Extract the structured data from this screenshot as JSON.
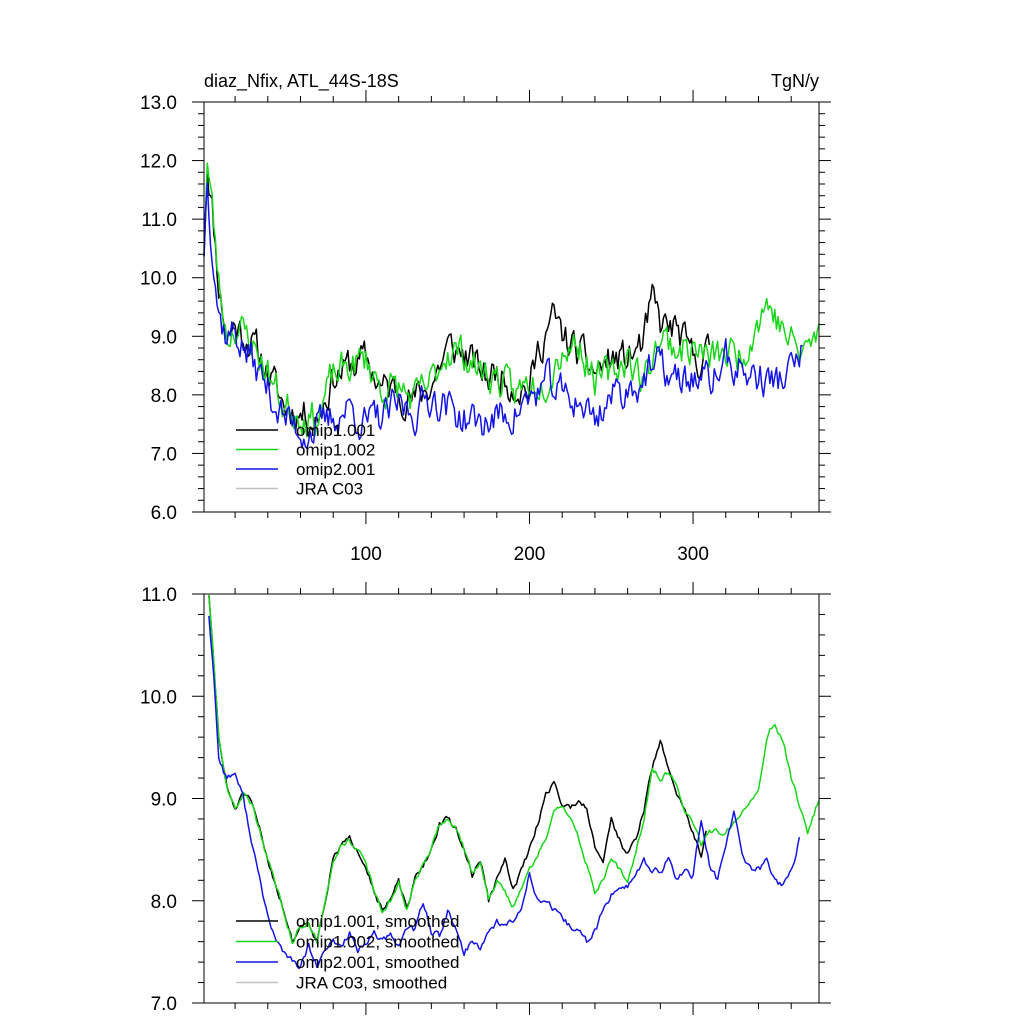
{
  "chart_data": [
    {
      "type": "line",
      "title": "diaz_Nfix, ATL_44S-18S",
      "units": "TgN/y",
      "xlim": [
        1,
        377
      ],
      "ylim": [
        6.0,
        13.0
      ],
      "x_ticks": [
        100,
        200,
        300
      ],
      "y_ticks": [
        6.0,
        7.0,
        8.0,
        9.0,
        10.0,
        11.0,
        12.0,
        13.0
      ],
      "y_tick_labels": [
        "6.0",
        "7.0",
        "8.0",
        "9.0",
        "10.0",
        "11.0",
        "12.0",
        "13.0"
      ],
      "legend": {
        "placement": "bottom-left"
      },
      "series": [
        {
          "name": "omip1.001",
          "color": "#000000",
          "x_start": 1,
          "x_end": 310,
          "anchors_x": [
            1,
            3,
            6,
            10,
            15,
            20,
            30,
            40,
            50,
            60,
            70,
            80,
            90,
            100,
            110,
            120,
            130,
            140,
            150,
            160,
            170,
            175,
            180,
            190,
            200,
            205,
            210,
            215,
            220,
            230,
            240,
            250,
            260,
            270,
            275,
            280,
            290,
            300,
            310
          ],
          "anchors_y": [
            10.5,
            12.0,
            11.2,
            9.9,
            9.0,
            9.2,
            8.9,
            8.4,
            7.8,
            7.7,
            7.6,
            8.3,
            8.5,
            8.6,
            8.1,
            8.1,
            7.9,
            8.2,
            8.8,
            8.7,
            8.4,
            8.3,
            8.4,
            8.2,
            8.1,
            8.7,
            9.1,
            9.3,
            9.0,
            8.7,
            8.4,
            8.6,
            8.6,
            8.9,
            9.6,
            9.2,
            9.1,
            8.6,
            8.7
          ],
          "noise": 0.26,
          "seed": 11
        },
        {
          "name": "omip1.002",
          "color": "#19d619",
          "x_start": 1,
          "x_end": 377,
          "anchors_x": [
            1,
            3,
            6,
            10,
            15,
            20,
            30,
            40,
            50,
            60,
            70,
            80,
            90,
            100,
            110,
            120,
            130,
            140,
            150,
            160,
            170,
            180,
            190,
            200,
            210,
            220,
            230,
            240,
            250,
            260,
            270,
            275,
            280,
            290,
            300,
            310,
            320,
            330,
            338,
            345,
            355,
            365,
            377
          ],
          "anchors_y": [
            10.6,
            12.0,
            11.2,
            9.9,
            9.0,
            9.2,
            8.9,
            8.4,
            7.8,
            7.7,
            7.6,
            8.3,
            8.5,
            8.6,
            8.1,
            8.1,
            7.9,
            8.2,
            8.8,
            8.7,
            8.4,
            8.3,
            8.0,
            8.2,
            8.3,
            8.8,
            8.9,
            8.3,
            8.3,
            8.7,
            8.2,
            8.7,
            9.0,
            8.8,
            8.8,
            8.6,
            8.7,
            8.7,
            9.2,
            9.6,
            9.1,
            8.7,
            9.0
          ],
          "noise": 0.26,
          "seed": 23
        },
        {
          "name": "omip2.001",
          "color": "#1414e6",
          "x_start": 1,
          "x_end": 367,
          "anchors_x": [
            1,
            3,
            6,
            10,
            15,
            20,
            25,
            30,
            40,
            50,
            60,
            70,
            80,
            90,
            100,
            110,
            120,
            130,
            140,
            150,
            160,
            170,
            180,
            190,
            200,
            210,
            220,
            230,
            240,
            250,
            260,
            270,
            280,
            290,
            300,
            310,
            320,
            330,
            340,
            350,
            360,
            367
          ],
          "anchors_y": [
            10.5,
            11.8,
            10.6,
            9.4,
            9.0,
            9.1,
            8.8,
            8.6,
            8.1,
            7.6,
            7.4,
            7.4,
            7.6,
            7.8,
            7.5,
            7.6,
            7.8,
            7.7,
            8.0,
            7.8,
            7.6,
            7.5,
            7.6,
            7.7,
            7.9,
            8.2,
            8.0,
            7.9,
            7.6,
            8.0,
            8.1,
            8.3,
            8.5,
            8.2,
            8.3,
            8.2,
            8.6,
            8.4,
            8.3,
            8.2,
            8.4,
            8.7
          ],
          "noise": 0.27,
          "seed": 37
        },
        {
          "name": "JRA C03",
          "color": "#c0c0c0",
          "x_start": null,
          "x_end": null,
          "anchors_x": [],
          "anchors_y": [],
          "noise": 0,
          "seed": 0
        }
      ]
    },
    {
      "type": "line",
      "title": "",
      "units": "",
      "xlim": [
        1,
        377
      ],
      "ylim": [
        7.0,
        11.0
      ],
      "x_ticks": [
        100,
        200,
        300
      ],
      "y_ticks": [
        7.0,
        8.0,
        9.0,
        10.0,
        11.0
      ],
      "y_tick_labels": [
        "7.0",
        "8.0",
        "9.0",
        "10.0",
        "11.0"
      ],
      "legend": {
        "placement": "bottom-left"
      },
      "series": [
        {
          "name": "omip1.001, smoothed",
          "color": "#000000",
          "x_start": 4,
          "x_end": 308,
          "anchors_x": [
            4,
            7,
            10,
            15,
            20,
            25,
            30,
            35,
            40,
            50,
            55,
            60,
            65,
            70,
            75,
            80,
            85,
            90,
            95,
            100,
            105,
            110,
            115,
            120,
            125,
            130,
            140,
            145,
            150,
            155,
            160,
            165,
            170,
            175,
            180,
            185,
            190,
            195,
            200,
            205,
            210,
            215,
            220,
            225,
            230,
            235,
            240,
            245,
            250,
            255,
            260,
            265,
            270,
            275,
            280,
            285,
            290,
            295,
            300,
            305,
            308
          ],
          "anchors_y": [
            11.0,
            10.3,
            9.6,
            9.1,
            8.9,
            9.05,
            8.95,
            8.7,
            8.4,
            7.9,
            7.6,
            7.75,
            7.8,
            7.6,
            8.0,
            8.4,
            8.55,
            8.6,
            8.5,
            8.35,
            8.1,
            7.9,
            8.0,
            8.2,
            7.9,
            8.2,
            8.5,
            8.75,
            8.8,
            8.7,
            8.5,
            8.25,
            8.4,
            8.0,
            8.2,
            8.4,
            8.1,
            8.3,
            8.5,
            8.75,
            9.05,
            9.15,
            8.95,
            8.9,
            9.0,
            8.9,
            8.55,
            8.4,
            8.8,
            8.6,
            8.45,
            8.6,
            8.9,
            9.3,
            9.55,
            9.3,
            9.05,
            8.9,
            8.65,
            8.45,
            8.7
          ],
          "noise": 0.025,
          "seed": 51
        },
        {
          "name": "omip1.002, smoothed",
          "color": "#19d619",
          "x_start": 4,
          "x_end": 377,
          "anchors_x": [
            4,
            7,
            10,
            15,
            20,
            25,
            30,
            35,
            40,
            50,
            55,
            60,
            65,
            70,
            75,
            80,
            85,
            90,
            95,
            100,
            105,
            110,
            115,
            120,
            125,
            130,
            140,
            145,
            150,
            155,
            160,
            165,
            170,
            175,
            180,
            190,
            200,
            210,
            215,
            220,
            225,
            230,
            240,
            245,
            250,
            260,
            265,
            270,
            275,
            280,
            285,
            290,
            295,
            300,
            305,
            310,
            320,
            330,
            340,
            345,
            350,
            355,
            360,
            365,
            370,
            377
          ],
          "anchors_y": [
            11.0,
            10.3,
            9.6,
            9.1,
            8.9,
            9.05,
            8.95,
            8.7,
            8.4,
            7.9,
            7.6,
            7.75,
            7.8,
            7.6,
            8.0,
            8.4,
            8.55,
            8.6,
            8.5,
            8.35,
            8.1,
            7.9,
            8.0,
            8.2,
            7.9,
            8.2,
            8.5,
            8.75,
            8.8,
            8.7,
            8.5,
            8.25,
            8.4,
            8.0,
            8.2,
            7.95,
            8.3,
            8.6,
            8.9,
            8.95,
            8.8,
            8.6,
            8.1,
            8.2,
            8.4,
            8.2,
            8.5,
            8.8,
            9.3,
            9.2,
            9.25,
            9.15,
            8.9,
            8.75,
            8.55,
            8.7,
            8.65,
            8.9,
            9.1,
            9.6,
            9.75,
            9.55,
            9.2,
            8.95,
            8.65,
            9.0
          ],
          "noise": 0.025,
          "seed": 63
        },
        {
          "name": "omip2.001, smoothed",
          "color": "#1414e6",
          "x_start": 4,
          "x_end": 365,
          "anchors_x": [
            4,
            7,
            10,
            15,
            20,
            25,
            30,
            35,
            40,
            45,
            50,
            55,
            60,
            65,
            70,
            75,
            80,
            85,
            90,
            95,
            100,
            105,
            110,
            115,
            120,
            125,
            130,
            135,
            140,
            145,
            150,
            155,
            160,
            165,
            170,
            175,
            180,
            185,
            190,
            195,
            200,
            205,
            210,
            215,
            220,
            225,
            230,
            235,
            240,
            245,
            250,
            255,
            260,
            265,
            270,
            275,
            280,
            285,
            290,
            295,
            300,
            305,
            310,
            315,
            320,
            325,
            330,
            335,
            340,
            345,
            350,
            355,
            360,
            365
          ],
          "anchors_y": [
            10.8,
            10.2,
            9.4,
            9.2,
            9.25,
            9.0,
            8.6,
            8.2,
            7.85,
            7.6,
            7.5,
            7.4,
            7.35,
            7.55,
            7.35,
            7.5,
            7.6,
            7.55,
            7.7,
            7.5,
            7.55,
            7.7,
            7.6,
            7.65,
            7.55,
            7.75,
            7.7,
            8.0,
            7.7,
            7.65,
            7.9,
            7.7,
            7.5,
            7.6,
            7.55,
            7.7,
            7.8,
            7.75,
            7.8,
            7.9,
            8.3,
            8.0,
            8.0,
            7.9,
            7.8,
            7.75,
            7.7,
            7.6,
            7.7,
            7.9,
            8.05,
            8.15,
            8.15,
            8.25,
            8.4,
            8.25,
            8.3,
            8.4,
            8.2,
            8.3,
            8.25,
            8.8,
            8.35,
            8.2,
            8.5,
            8.9,
            8.45,
            8.3,
            8.3,
            8.4,
            8.2,
            8.15,
            8.3,
            8.6
          ],
          "noise": 0.03,
          "seed": 77
        },
        {
          "name": "JRA C03, smoothed",
          "color": "#c0c0c0",
          "x_start": null,
          "x_end": null,
          "anchors_x": [],
          "anchors_y": [],
          "noise": 0,
          "seed": 0
        }
      ]
    }
  ]
}
